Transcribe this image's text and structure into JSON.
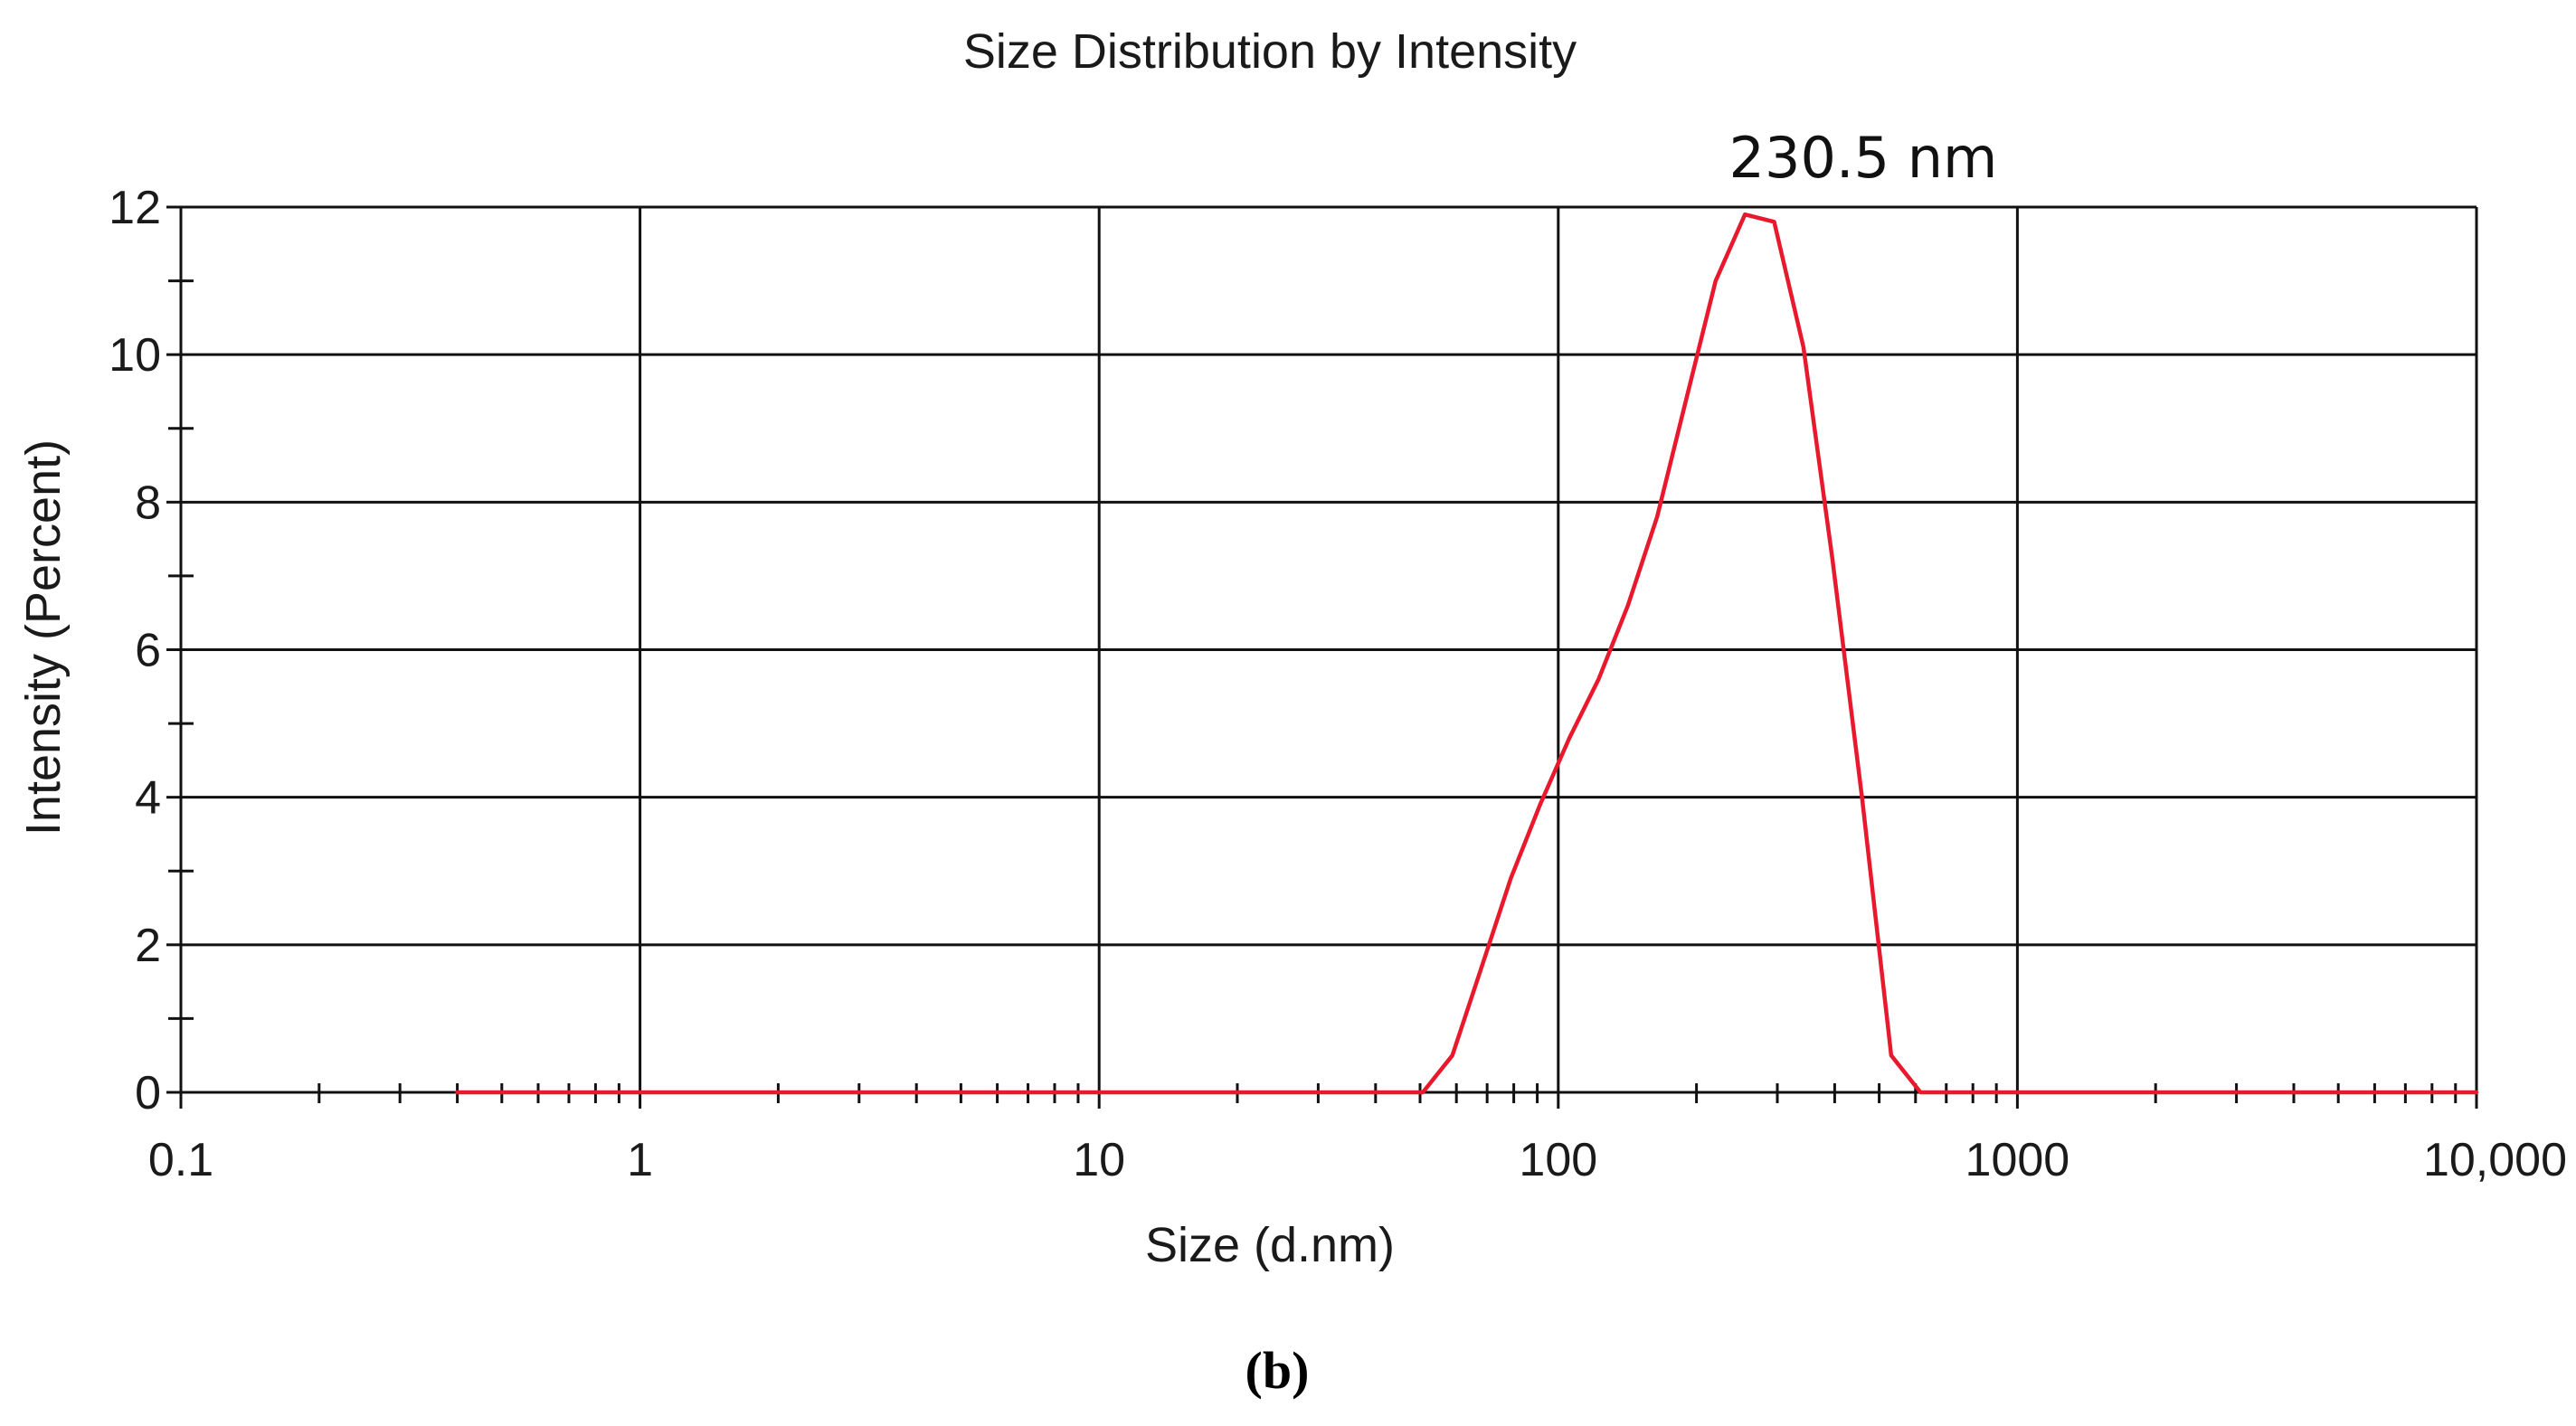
{
  "chart_data": {
    "type": "line",
    "title": "Size Distribution by Intensity",
    "xlabel": "Size (d.nm)",
    "ylabel": "Intensity (Percent)",
    "x_scale": "log",
    "xlim": [
      0.1,
      10000
    ],
    "ylim": [
      0,
      12
    ],
    "x_ticks": [
      {
        "value": 0.1,
        "label": "0.1"
      },
      {
        "value": 1,
        "label": "1"
      },
      {
        "value": 10,
        "label": "10"
      },
      {
        "value": 100,
        "label": "100"
      },
      {
        "value": 1000,
        "label": "1000"
      },
      {
        "value": 10000,
        "label": "10,000"
      }
    ],
    "y_ticks": [
      {
        "value": 0,
        "label": "0"
      },
      {
        "value": 2,
        "label": "2"
      },
      {
        "value": 4,
        "label": "4"
      },
      {
        "value": 6,
        "label": "6"
      },
      {
        "value": 8,
        "label": "8"
      },
      {
        "value": 10,
        "label": "10"
      },
      {
        "value": 12,
        "label": "12"
      }
    ],
    "grid": true,
    "series": [
      {
        "color": "#e8192c",
        "x": [
          0.4,
          0.6,
          1,
          2,
          5,
          10,
          20,
          40,
          50.7,
          58.8,
          68.1,
          78.8,
          91.3,
          105.7,
          122.4,
          141.8,
          164.2,
          190.1,
          220.2,
          255,
          295.3,
          342,
          396.1,
          458.7,
          531.2,
          615.1,
          712.4,
          1000,
          2000,
          5000,
          10000
        ],
        "y": [
          0,
          0,
          0,
          0,
          0,
          0,
          0,
          0,
          0,
          0.5,
          1.7,
          2.9,
          3.9,
          4.8,
          5.6,
          6.6,
          7.8,
          9.4,
          11.0,
          11.9,
          11.8,
          10.1,
          7.2,
          4.0,
          0.5,
          0,
          0,
          0,
          0,
          0,
          0
        ]
      }
    ],
    "annotations": [
      {
        "text": "230.5 nm",
        "x": 230.5,
        "y": 12
      }
    ]
  },
  "caption": "(b)"
}
